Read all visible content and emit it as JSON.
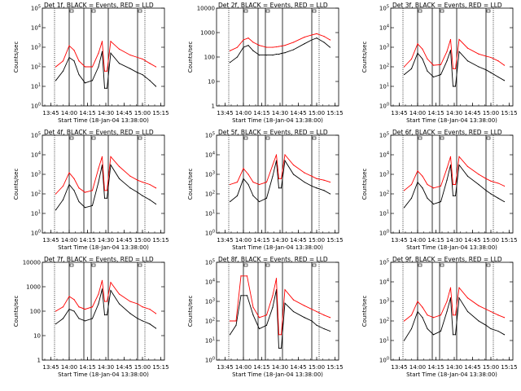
{
  "figure": {
    "xlabel": "Start Time (18-Jan-04 13:38:00)",
    "ylabel": "Counts/sec",
    "xticks": [
      "13:45",
      "14:00",
      "14:15",
      "14:30",
      "14:45",
      "15:00",
      "15:15"
    ],
    "colors": {
      "events": "#000000",
      "lld": "#ff0000",
      "axes": "#000000",
      "background": "#ffffff"
    }
  },
  "chart_data": [
    {
      "type": "line",
      "title": "Det 1f, BLACK = Events, RED = LLD",
      "xlim": [
        "13:38",
        "15:18"
      ],
      "yscale": "log",
      "ylim": [
        1,
        100000
      ],
      "yticks": [
        "10^0",
        "10^1",
        "10^2",
        "10^3",
        "10^4",
        "10^5"
      ],
      "x": [
        "13:49",
        "13:55",
        "14:00",
        "14:04",
        "14:08",
        "14:13",
        "14:19",
        "14:24",
        "14:27",
        "14:29",
        "14:31",
        "14:34",
        "14:41",
        "14:50",
        "14:56",
        "15:00",
        "15:06",
        "15:11"
      ],
      "series": [
        {
          "name": "Events",
          "color": "#000000",
          "values": [
            20,
            60,
            300,
            200,
            40,
            15,
            20,
            100,
            600,
            8,
            8,
            500,
            150,
            80,
            50,
            40,
            20,
            10
          ]
        },
        {
          "name": "LLD",
          "color": "#ff0000",
          "values": [
            100,
            200,
            1200,
            700,
            200,
            100,
            100,
            500,
            2000,
            60,
            60,
            2000,
            800,
            400,
            300,
            250,
            150,
            100
          ]
        }
      ]
    },
    {
      "type": "line",
      "title": "Det 2f, BLACK = Events, RED = LLD",
      "xlim": [
        "13:38",
        "15:18"
      ],
      "yscale": "log",
      "ylim": [
        1,
        10000
      ],
      "yticks": [
        "1",
        "10",
        "100",
        "1000",
        "10000"
      ],
      "x": [
        "13:49",
        "13:55",
        "14:00",
        "14:04",
        "14:08",
        "14:13",
        "14:19",
        "14:24",
        "14:27",
        "14:29",
        "14:31",
        "14:34",
        "14:41",
        "14:50",
        "14:56",
        "15:00",
        "15:06",
        "15:11"
      ],
      "series": [
        {
          "name": "Events",
          "color": "#000000",
          "values": [
            60,
            100,
            250,
            300,
            180,
            120,
            120,
            120,
            130,
            130,
            140,
            150,
            200,
            350,
            500,
            600,
            400,
            250
          ]
        },
        {
          "name": "LLD",
          "color": "#ff0000",
          "values": [
            180,
            250,
            500,
            600,
            400,
            300,
            250,
            250,
            260,
            270,
            280,
            300,
            400,
            650,
            800,
            900,
            700,
            500
          ]
        }
      ]
    },
    {
      "type": "line",
      "title": "Det 3f, BLACK = Events, RED = LLD",
      "xlim": [
        "13:38",
        "15:18"
      ],
      "yscale": "log",
      "ylim": [
        1,
        100000
      ],
      "yticks": [
        "10^0",
        "10^1",
        "10^2",
        "10^3",
        "10^4",
        "10^5"
      ],
      "x": [
        "13:49",
        "13:55",
        "14:00",
        "14:04",
        "14:08",
        "14:13",
        "14:19",
        "14:24",
        "14:27",
        "14:29",
        "14:31",
        "14:34",
        "14:41",
        "14:50",
        "14:56",
        "15:00",
        "15:06",
        "15:11"
      ],
      "series": [
        {
          "name": "Events",
          "color": "#000000",
          "values": [
            40,
            80,
            500,
            250,
            60,
            30,
            40,
            200,
            700,
            10,
            10,
            600,
            200,
            100,
            70,
            50,
            30,
            20
          ]
        },
        {
          "name": "LLD",
          "color": "#ff0000",
          "values": [
            100,
            250,
            1500,
            800,
            250,
            120,
            130,
            600,
            2500,
            80,
            80,
            2500,
            900,
            450,
            350,
            300,
            200,
            120
          ]
        }
      ]
    },
    {
      "type": "line",
      "title": "Det 4f, BLACK = Events, RED = LLD",
      "xlim": [
        "13:38",
        "15:18"
      ],
      "yscale": "log",
      "ylim": [
        1,
        100000
      ],
      "yticks": [
        "10^0",
        "10^1",
        "10^2",
        "10^3",
        "10^4",
        "10^5"
      ],
      "x": [
        "13:49",
        "13:55",
        "14:00",
        "14:04",
        "14:08",
        "14:13",
        "14:19",
        "14:24",
        "14:27",
        "14:29",
        "14:31",
        "14:34",
        "14:41",
        "14:50",
        "14:56",
        "15:00",
        "15:06",
        "15:11"
      ],
      "series": [
        {
          "name": "Events",
          "color": "#000000",
          "values": [
            15,
            50,
            300,
            150,
            40,
            20,
            25,
            400,
            3000,
            60,
            60,
            3000,
            600,
            200,
            120,
            80,
            50,
            30
          ]
        },
        {
          "name": "LLD",
          "color": "#ff0000",
          "values": [
            100,
            250,
            1200,
            600,
            200,
            120,
            150,
            2000,
            8000,
            150,
            150,
            8000,
            2500,
            800,
            500,
            400,
            300,
            200
          ]
        }
      ]
    },
    {
      "type": "line",
      "title": "Det 5f, BLACK = Events, RED = LLD",
      "xlim": [
        "13:38",
        "15:18"
      ],
      "yscale": "log",
      "ylim": [
        1,
        100000
      ],
      "yticks": [
        "10^0",
        "10^1",
        "10^2",
        "10^3",
        "10^4",
        "10^5"
      ],
      "x": [
        "13:49",
        "13:55",
        "14:00",
        "14:04",
        "14:08",
        "14:13",
        "14:19",
        "14:24",
        "14:27",
        "14:29",
        "14:31",
        "14:34",
        "14:41",
        "14:50",
        "14:56",
        "15:00",
        "15:06",
        "15:11"
      ],
      "series": [
        {
          "name": "Events",
          "color": "#000000",
          "values": [
            40,
            80,
            600,
            300,
            80,
            40,
            60,
            800,
            5000,
            200,
            200,
            5000,
            1000,
            400,
            250,
            200,
            150,
            100
          ]
        },
        {
          "name": "LLD",
          "color": "#ff0000",
          "values": [
            300,
            400,
            2000,
            1000,
            400,
            300,
            400,
            3000,
            10000,
            600,
            600,
            10000,
            3000,
            1200,
            800,
            600,
            500,
            400
          ]
        }
      ]
    },
    {
      "type": "line",
      "title": "Det 6f, BLACK = Events, RED = LLD",
      "xlim": [
        "13:38",
        "15:18"
      ],
      "yscale": "log",
      "ylim": [
        1,
        100000
      ],
      "yticks": [
        "10^0",
        "10^1",
        "10^2",
        "10^3",
        "10^4",
        "10^5"
      ],
      "x": [
        "13:49",
        "13:55",
        "14:00",
        "14:04",
        "14:08",
        "14:13",
        "14:19",
        "14:24",
        "14:27",
        "14:29",
        "14:31",
        "14:34",
        "14:41",
        "14:50",
        "14:56",
        "15:00",
        "15:06",
        "15:11"
      ],
      "series": [
        {
          "name": "Events",
          "color": "#000000",
          "values": [
            20,
            60,
            400,
            200,
            60,
            30,
            40,
            500,
            3000,
            80,
            80,
            3000,
            800,
            300,
            150,
            100,
            60,
            40
          ]
        },
        {
          "name": "LLD",
          "color": "#ff0000",
          "values": [
            150,
            300,
            1500,
            800,
            300,
            200,
            250,
            2000,
            8000,
            300,
            300,
            8000,
            2500,
            1000,
            600,
            450,
            350,
            250
          ]
        }
      ]
    },
    {
      "type": "line",
      "title": "Det 7f, BLACK = Events, RED = LLD",
      "xlim": [
        "13:38",
        "15:18"
      ],
      "yscale": "log",
      "ylim": [
        1,
        10000
      ],
      "yticks": [
        "1",
        "10",
        "100",
        "1000",
        "10000"
      ],
      "x": [
        "13:49",
        "13:55",
        "14:00",
        "14:04",
        "14:08",
        "14:13",
        "14:19",
        "14:24",
        "14:27",
        "14:29",
        "14:31",
        "14:34",
        "14:41",
        "14:50",
        "14:56",
        "15:00",
        "15:06",
        "15:11"
      ],
      "series": [
        {
          "name": "Events",
          "color": "#000000",
          "values": [
            30,
            50,
            120,
            100,
            50,
            40,
            50,
            200,
            800,
            70,
            70,
            700,
            200,
            80,
            50,
            40,
            30,
            20
          ]
        },
        {
          "name": "LLD",
          "color": "#ff0000",
          "values": [
            100,
            150,
            400,
            300,
            150,
            120,
            150,
            500,
            1800,
            250,
            250,
            1500,
            500,
            250,
            200,
            150,
            120,
            80
          ]
        }
      ]
    },
    {
      "type": "line",
      "title": "Det 8f, BLACK = Events, RED = LLD",
      "xlim": [
        "13:38",
        "15:18"
      ],
      "yscale": "log",
      "ylim": [
        1,
        100000
      ],
      "yticks": [
        "10^0",
        "10^1",
        "10^2",
        "10^3",
        "10^4",
        "10^5"
      ],
      "x": [
        "13:49",
        "13:54",
        "13:58",
        "14:03",
        "14:08",
        "14:13",
        "14:19",
        "14:24",
        "14:27",
        "14:29",
        "14:31",
        "14:34",
        "14:41",
        "14:50",
        "14:56",
        "15:00",
        "15:06",
        "15:11"
      ],
      "series": [
        {
          "name": "Events",
          "color": "#000000",
          "values": [
            20,
            60,
            2000,
            2000,
            200,
            40,
            60,
            500,
            4000,
            4,
            4,
            800,
            300,
            150,
            100,
            60,
            40,
            30
          ]
        },
        {
          "name": "LLD",
          "color": "#ff0000",
          "values": [
            100,
            100,
            20000,
            20000,
            500,
            150,
            200,
            2000,
            15000,
            20,
            20,
            4000,
            1200,
            600,
            400,
            300,
            200,
            150
          ]
        }
      ]
    },
    {
      "type": "line",
      "title": "Det 9f, BLACK = Events, RED = LLD",
      "xlim": [
        "13:38",
        "15:18"
      ],
      "yscale": "log",
      "ylim": [
        1,
        100000
      ],
      "yticks": [
        "10^0",
        "10^1",
        "10^2",
        "10^3",
        "10^4",
        "10^5"
      ],
      "x": [
        "13:49",
        "13:55",
        "14:00",
        "14:04",
        "14:08",
        "14:13",
        "14:19",
        "14:24",
        "14:27",
        "14:29",
        "14:31",
        "14:34",
        "14:41",
        "14:50",
        "14:56",
        "15:00",
        "15:06",
        "15:11"
      ],
      "series": [
        {
          "name": "Events",
          "color": "#000000",
          "values": [
            10,
            40,
            300,
            150,
            40,
            20,
            30,
            300,
            1500,
            20,
            20,
            1500,
            300,
            100,
            60,
            40,
            30,
            20
          ]
        },
        {
          "name": "LLD",
          "color": "#ff0000",
          "values": [
            100,
            200,
            1000,
            500,
            200,
            150,
            200,
            1000,
            5000,
            200,
            200,
            5000,
            1500,
            600,
            400,
            300,
            200,
            150
          ]
        }
      ]
    }
  ]
}
